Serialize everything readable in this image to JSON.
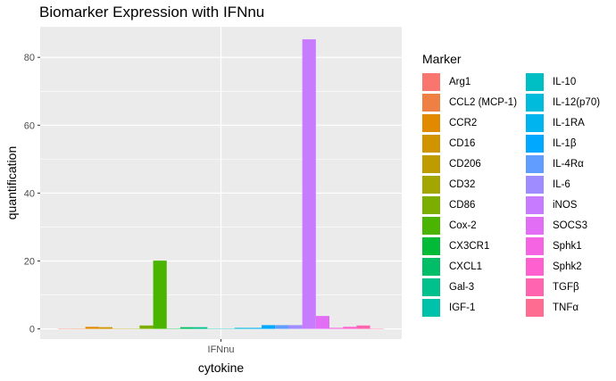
{
  "chart_data": {
    "type": "bar",
    "title": "Biomarker Expression with IFNnu",
    "xlabel": "cytokine",
    "ylabel": "quantification",
    "categories": [
      "IFNnu"
    ],
    "ylim": [
      -3,
      89
    ],
    "yticks": [
      0,
      20,
      40,
      60,
      80
    ],
    "grid": true,
    "legend_title": "Marker",
    "legend_position": "right",
    "series": [
      {
        "name": "Arg1",
        "color": "#F8766D",
        "values": [
          0.1
        ]
      },
      {
        "name": "CCL2 (MCP-1)",
        "color": "#EE8043",
        "values": [
          0.1
        ]
      },
      {
        "name": "CCR2",
        "color": "#E18A00",
        "values": [
          0.6
        ]
      },
      {
        "name": "CD16",
        "color": "#D09400",
        "values": [
          0.5
        ]
      },
      {
        "name": "CD206",
        "color": "#BE9C00",
        "values": [
          0.1
        ]
      },
      {
        "name": "CD32",
        "color": "#A3A500",
        "values": [
          0.1
        ]
      },
      {
        "name": "CD86",
        "color": "#7CAE00",
        "values": [
          1.0
        ]
      },
      {
        "name": "Cox-2",
        "color": "#4BB400",
        "values": [
          20.1
        ]
      },
      {
        "name": "CX3CR1",
        "color": "#00BA38",
        "values": [
          0.1
        ]
      },
      {
        "name": "CXCL1",
        "color": "#00BE67",
        "values": [
          0.5
        ]
      },
      {
        "name": "Gal-3",
        "color": "#00C08B",
        "values": [
          0.5
        ]
      },
      {
        "name": "IGF-1",
        "color": "#00C1A9",
        "values": [
          0.1
        ]
      },
      {
        "name": "IL-10",
        "color": "#00BFC4",
        "values": [
          0.1
        ]
      },
      {
        "name": "IL-12(p70)",
        "color": "#00BBDC",
        "values": [
          0.3
        ]
      },
      {
        "name": "IL-1RA",
        "color": "#00B4F0",
        "values": [
          0.3
        ]
      },
      {
        "name": "IL-1β",
        "color": "#00A9FF",
        "values": [
          1.1
        ]
      },
      {
        "name": "IL-4Rα",
        "color": "#619CFF",
        "values": [
          1.1
        ]
      },
      {
        "name": "IL-6",
        "color": "#9F8CFF",
        "values": [
          1.1
        ]
      },
      {
        "name": "iNOS",
        "color": "#C77CFF",
        "values": [
          85.3
        ]
      },
      {
        "name": "SOCS3",
        "color": "#E36EF6",
        "values": [
          3.8
        ]
      },
      {
        "name": "Sphk1",
        "color": "#F564E3",
        "values": [
          0.3
        ]
      },
      {
        "name": "Sphk2",
        "color": "#FE61CF",
        "values": [
          0.6
        ]
      },
      {
        "name": "TGFβ",
        "color": "#FF64B0",
        "values": [
          1.0
        ]
      },
      {
        "name": "TNFα",
        "color": "#FF6C91",
        "values": [
          0.1
        ]
      }
    ]
  }
}
